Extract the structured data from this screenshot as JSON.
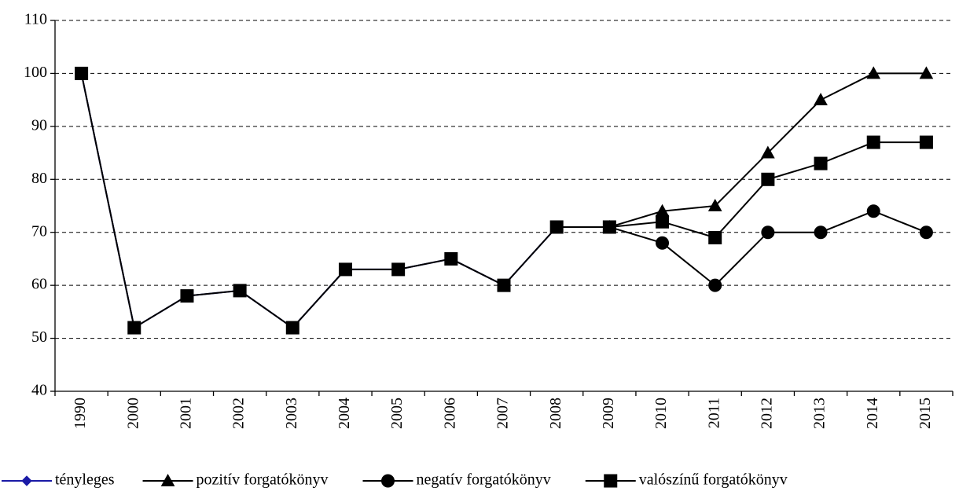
{
  "chart_data": {
    "type": "line",
    "categories": [
      "1990",
      "2000",
      "2001",
      "2002",
      "2003",
      "2004",
      "2005",
      "2006",
      "2007",
      "2008",
      "2009",
      "2010",
      "2011",
      "2012",
      "2013",
      "2014",
      "2015"
    ],
    "series": [
      {
        "name": "tényleges",
        "color": "#1a1aa6",
        "marker": "diamond",
        "values": [
          100,
          52,
          58,
          59,
          52,
          63,
          63,
          65,
          60,
          71,
          71,
          null,
          null,
          null,
          null,
          null,
          null
        ]
      },
      {
        "name": "pozitív forgatókönyv",
        "color": "#000000",
        "marker": "triangle",
        "values": [
          null,
          null,
          null,
          null,
          null,
          null,
          null,
          null,
          null,
          null,
          71,
          74,
          75,
          85,
          95,
          100,
          100
        ]
      },
      {
        "name": "negatív forgatókönyv",
        "color": "#000000",
        "marker": "circle",
        "values": [
          null,
          null,
          null,
          null,
          null,
          null,
          null,
          null,
          null,
          null,
          71,
          68,
          60,
          70,
          70,
          74,
          70
        ]
      },
      {
        "name": "valószínű forgatókönyv",
        "color": "#000000",
        "marker": "square",
        "values": [
          100,
          52,
          58,
          59,
          52,
          63,
          63,
          65,
          60,
          71,
          71,
          72,
          69,
          80,
          83,
          87,
          87
        ]
      }
    ],
    "ylim": [
      40,
      110
    ],
    "yticks": [
      40,
      50,
      60,
      70,
      80,
      90,
      100,
      110
    ],
    "grid": true,
    "legend": "bottom"
  }
}
